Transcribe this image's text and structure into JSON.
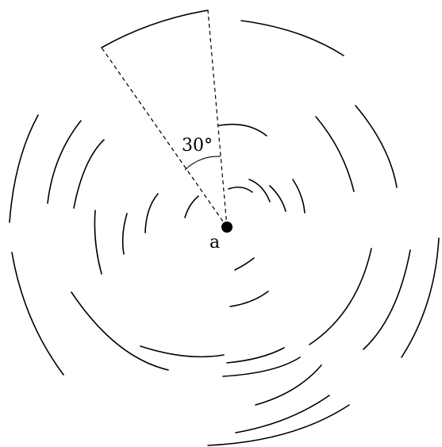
{
  "diagram": {
    "center_label": "a",
    "angle_label": "30°",
    "colors": {
      "background": "#ffffff",
      "stroke": "#000000"
    },
    "wedge": {
      "angle_deg": 30,
      "line_style": "dashed"
    }
  }
}
